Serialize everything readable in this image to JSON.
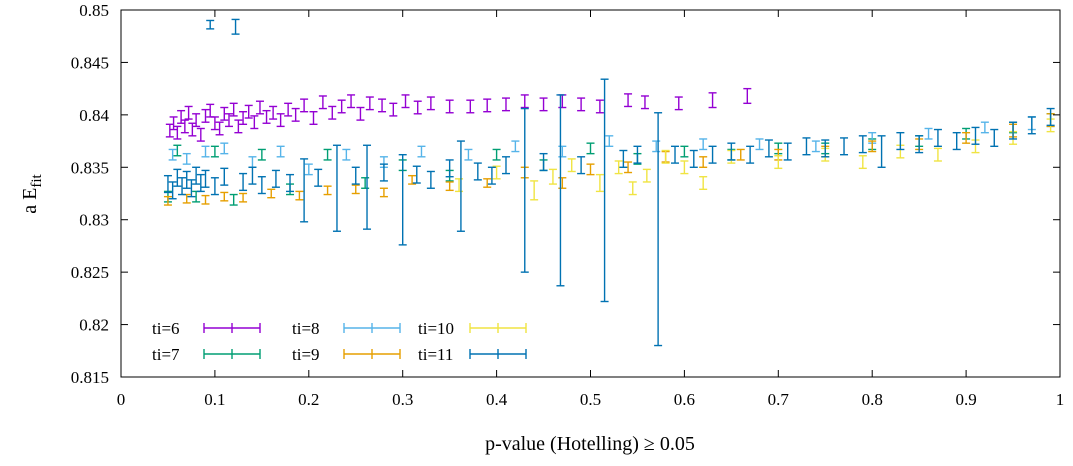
{
  "chart_data": {
    "type": "scatter",
    "title": "",
    "xlabel": "p-value (Hotelling) ≥ 0.05",
    "ylabel_main": "a E",
    "ylabel_sub": "fit",
    "xlim": [
      0,
      1
    ],
    "ylim": [
      0.815,
      0.85
    ],
    "xticks": [
      "0",
      "0.1",
      "0.2",
      "0.3",
      "0.4",
      "0.5",
      "0.6",
      "0.7",
      "0.8",
      "0.9",
      "1"
    ],
    "yticks": [
      "0.815",
      "0.82",
      "0.825",
      "0.83",
      "0.835",
      "0.84",
      "0.845",
      "0.85"
    ],
    "grid": false,
    "legend_position": "bottom-left",
    "error_bars": true,
    "series": [
      {
        "name": "ti=6",
        "color": "#9400d3",
        "points": [
          [
            0.052,
            0.8385,
            0.0006
          ],
          [
            0.056,
            0.8392,
            0.0006
          ],
          [
            0.06,
            0.8383,
            0.0006
          ],
          [
            0.064,
            0.8398,
            0.0006
          ],
          [
            0.068,
            0.8389,
            0.0006
          ],
          [
            0.072,
            0.8402,
            0.0006
          ],
          [
            0.076,
            0.8386,
            0.0006
          ],
          [
            0.08,
            0.8395,
            0.0006
          ],
          [
            0.085,
            0.8381,
            0.0006
          ],
          [
            0.09,
            0.8399,
            0.0006
          ],
          [
            0.095,
            0.8404,
            0.0006
          ],
          [
            0.1,
            0.8392,
            0.0006
          ],
          [
            0.105,
            0.8387,
            0.0006
          ],
          [
            0.11,
            0.8401,
            0.0006
          ],
          [
            0.115,
            0.8395,
            0.0006
          ],
          [
            0.12,
            0.8405,
            0.0006
          ],
          [
            0.125,
            0.8389,
            0.0006
          ],
          [
            0.13,
            0.8397,
            0.0006
          ],
          [
            0.136,
            0.8403,
            0.0006
          ],
          [
            0.142,
            0.8393,
            0.0006
          ],
          [
            0.148,
            0.8407,
            0.0006
          ],
          [
            0.155,
            0.8398,
            0.0006
          ],
          [
            0.162,
            0.8402,
            0.0006
          ],
          [
            0.17,
            0.8395,
            0.0006
          ],
          [
            0.178,
            0.8405,
            0.0006
          ],
          [
            0.186,
            0.84,
            0.0006
          ],
          [
            0.195,
            0.8409,
            0.0006
          ],
          [
            0.205,
            0.8397,
            0.0006
          ],
          [
            0.215,
            0.8412,
            0.0006
          ],
          [
            0.225,
            0.8402,
            0.0006
          ],
          [
            0.235,
            0.8408,
            0.0006
          ],
          [
            0.245,
            0.8413,
            0.0006
          ],
          [
            0.255,
            0.8401,
            0.0006
          ],
          [
            0.265,
            0.8411,
            0.0006
          ],
          [
            0.278,
            0.8409,
            0.0006
          ],
          [
            0.29,
            0.8405,
            0.0006
          ],
          [
            0.303,
            0.8413,
            0.0006
          ],
          [
            0.316,
            0.8407,
            0.0006
          ],
          [
            0.33,
            0.8411,
            0.0006
          ],
          [
            0.35,
            0.8408,
            0.0006
          ],
          [
            0.372,
            0.8408,
            0.0006
          ],
          [
            0.39,
            0.8409,
            0.0006
          ],
          [
            0.41,
            0.841,
            0.0006
          ],
          [
            0.43,
            0.8413,
            0.0006
          ],
          [
            0.45,
            0.841,
            0.0006
          ],
          [
            0.47,
            0.8413,
            0.0006
          ],
          [
            0.49,
            0.841,
            0.0006
          ],
          [
            0.51,
            0.8408,
            0.0006
          ],
          [
            0.54,
            0.8414,
            0.0006
          ],
          [
            0.558,
            0.8412,
            0.0006
          ],
          [
            0.594,
            0.8411,
            0.0006
          ],
          [
            0.63,
            0.8414,
            0.0007
          ],
          [
            0.667,
            0.8418,
            0.0007
          ]
        ]
      },
      {
        "name": "ti=7",
        "color": "#009e73",
        "points": [
          [
            0.05,
            0.8322,
            0.0005
          ],
          [
            0.06,
            0.8366,
            0.0005
          ],
          [
            0.08,
            0.8322,
            0.0005
          ],
          [
            0.1,
            0.8365,
            0.0005
          ],
          [
            0.12,
            0.8319,
            0.0005
          ],
          [
            0.15,
            0.8362,
            0.0005
          ],
          [
            0.18,
            0.8329,
            0.0005
          ],
          [
            0.22,
            0.8362,
            0.0005
          ],
          [
            0.26,
            0.8335,
            0.0005
          ],
          [
            0.3,
            0.8352,
            0.0005
          ],
          [
            0.35,
            0.8342,
            0.0005
          ],
          [
            0.4,
            0.8362,
            0.0005
          ],
          [
            0.45,
            0.8352,
            0.0005
          ],
          [
            0.5,
            0.8368,
            0.0005
          ],
          [
            0.55,
            0.8358,
            0.0005
          ],
          [
            0.6,
            0.8365,
            0.0005
          ],
          [
            0.65,
            0.8362,
            0.0005
          ],
          [
            0.7,
            0.8368,
            0.0005
          ],
          [
            0.75,
            0.8368,
            0.0005
          ],
          [
            0.8,
            0.8372,
            0.0005
          ],
          [
            0.85,
            0.8375,
            0.0005
          ],
          [
            0.9,
            0.8382,
            0.0005
          ],
          [
            0.95,
            0.8388,
            0.0005
          ],
          [
            0.99,
            0.8395,
            0.0006
          ]
        ]
      },
      {
        "name": "ti=8",
        "color": "#56b4e9",
        "points": [
          [
            0.055,
            0.8362,
            0.0005
          ],
          [
            0.07,
            0.8358,
            0.0005
          ],
          [
            0.09,
            0.8365,
            0.0005
          ],
          [
            0.11,
            0.8368,
            0.0005
          ],
          [
            0.14,
            0.8355,
            0.0005
          ],
          [
            0.17,
            0.8365,
            0.0005
          ],
          [
            0.2,
            0.8348,
            0.0005
          ],
          [
            0.24,
            0.8362,
            0.0005
          ],
          [
            0.28,
            0.8355,
            0.0005
          ],
          [
            0.32,
            0.8365,
            0.0005
          ],
          [
            0.37,
            0.8362,
            0.0005
          ],
          [
            0.42,
            0.837,
            0.0005
          ],
          [
            0.47,
            0.8365,
            0.0005
          ],
          [
            0.52,
            0.8375,
            0.0005
          ],
          [
            0.57,
            0.837,
            0.0005
          ],
          [
            0.62,
            0.8372,
            0.0005
          ],
          [
            0.68,
            0.8372,
            0.0005
          ],
          [
            0.74,
            0.837,
            0.0005
          ],
          [
            0.8,
            0.8378,
            0.0005
          ],
          [
            0.86,
            0.8382,
            0.0005
          ],
          [
            0.92,
            0.8388,
            0.0005
          ],
          [
            0.97,
            0.8392,
            0.0006
          ]
        ]
      },
      {
        "name": "ti=9",
        "color": "#e69f00",
        "points": [
          [
            0.05,
            0.8318,
            0.0004
          ],
          [
            0.07,
            0.832,
            0.0004
          ],
          [
            0.09,
            0.8319,
            0.0004
          ],
          [
            0.11,
            0.8322,
            0.0004
          ],
          [
            0.13,
            0.8321,
            0.0004
          ],
          [
            0.16,
            0.8325,
            0.0004
          ],
          [
            0.19,
            0.8323,
            0.0004
          ],
          [
            0.22,
            0.8328,
            0.0004
          ],
          [
            0.25,
            0.8329,
            0.0004
          ],
          [
            0.28,
            0.8326,
            0.0004
          ],
          [
            0.31,
            0.8338,
            0.0004
          ],
          [
            0.35,
            0.8332,
            0.0004
          ],
          [
            0.39,
            0.8335,
            0.0004
          ],
          [
            0.43,
            0.8345,
            0.0005
          ],
          [
            0.47,
            0.8335,
            0.0005
          ],
          [
            0.5,
            0.8348,
            0.0005
          ],
          [
            0.54,
            0.835,
            0.0005
          ],
          [
            0.58,
            0.836,
            0.0005
          ],
          [
            0.62,
            0.8355,
            0.0005
          ],
          [
            0.66,
            0.8362,
            0.0005
          ],
          [
            0.7,
            0.8362,
            0.0005
          ],
          [
            0.75,
            0.8365,
            0.0005
          ],
          [
            0.8,
            0.837,
            0.0005
          ],
          [
            0.85,
            0.8372,
            0.0005
          ],
          [
            0.9,
            0.8378,
            0.0005
          ],
          [
            0.95,
            0.8385,
            0.0006
          ],
          [
            0.99,
            0.8395,
            0.0006
          ]
        ]
      },
      {
        "name": "ti=10",
        "color": "#f0e442",
        "points": [
          [
            0.36,
            0.8333,
            0.0006
          ],
          [
            0.4,
            0.8345,
            0.0006
          ],
          [
            0.44,
            0.8328,
            0.0009
          ],
          [
            0.46,
            0.8341,
            0.0007
          ],
          [
            0.48,
            0.8352,
            0.0006
          ],
          [
            0.51,
            0.8335,
            0.0008
          ],
          [
            0.53,
            0.835,
            0.0006
          ],
          [
            0.545,
            0.833,
            0.0006
          ],
          [
            0.56,
            0.8342,
            0.0006
          ],
          [
            0.58,
            0.836,
            0.0006
          ],
          [
            0.6,
            0.835,
            0.0006
          ],
          [
            0.62,
            0.8335,
            0.0006
          ],
          [
            0.65,
            0.836,
            0.0006
          ],
          [
            0.7,
            0.8355,
            0.0006
          ],
          [
            0.75,
            0.8362,
            0.0006
          ],
          [
            0.79,
            0.8355,
            0.0006
          ],
          [
            0.83,
            0.8365,
            0.0006
          ],
          [
            0.87,
            0.8362,
            0.0006
          ],
          [
            0.91,
            0.837,
            0.0006
          ],
          [
            0.95,
            0.8378,
            0.0006
          ],
          [
            0.99,
            0.839,
            0.0006
          ]
        ]
      },
      {
        "name": "ti=11",
        "color": "#0072b2",
        "points": [
          [
            0.05,
            0.8334,
            0.0008
          ],
          [
            0.055,
            0.8328,
            0.0008
          ],
          [
            0.06,
            0.834,
            0.0008
          ],
          [
            0.065,
            0.8332,
            0.0008
          ],
          [
            0.07,
            0.8338,
            0.0008
          ],
          [
            0.075,
            0.833,
            0.0008
          ],
          [
            0.08,
            0.8342,
            0.0008
          ],
          [
            0.085,
            0.8335,
            0.0008
          ],
          [
            0.09,
            0.8339,
            0.0008
          ],
          [
            0.095,
            0.8486,
            0.0004
          ],
          [
            0.1,
            0.8332,
            0.0008
          ],
          [
            0.11,
            0.8341,
            0.0008
          ],
          [
            0.122,
            0.8484,
            0.0007
          ],
          [
            0.13,
            0.8336,
            0.0008
          ],
          [
            0.14,
            0.8342,
            0.0008
          ],
          [
            0.15,
            0.8333,
            0.0008
          ],
          [
            0.165,
            0.8339,
            0.0008
          ],
          [
            0.18,
            0.8335,
            0.0008
          ],
          [
            0.195,
            0.8328,
            0.003
          ],
          [
            0.21,
            0.834,
            0.0008
          ],
          [
            0.23,
            0.833,
            0.0041
          ],
          [
            0.25,
            0.8342,
            0.0008
          ],
          [
            0.262,
            0.8331,
            0.004
          ],
          [
            0.28,
            0.8345,
            0.0008
          ],
          [
            0.3,
            0.8319,
            0.0043
          ],
          [
            0.315,
            0.8343,
            0.0008
          ],
          [
            0.33,
            0.8338,
            0.0008
          ],
          [
            0.35,
            0.8349,
            0.0008
          ],
          [
            0.362,
            0.8332,
            0.0043
          ],
          [
            0.38,
            0.8346,
            0.0008
          ],
          [
            0.395,
            0.8342,
            0.0008
          ],
          [
            0.41,
            0.8352,
            0.0008
          ],
          [
            0.43,
            0.8328,
            0.0078
          ],
          [
            0.45,
            0.8355,
            0.0008
          ],
          [
            0.468,
            0.8328,
            0.0091
          ],
          [
            0.49,
            0.8352,
            0.0008
          ],
          [
            0.515,
            0.8328,
            0.0106
          ],
          [
            0.535,
            0.8358,
            0.0008
          ],
          [
            0.55,
            0.8362,
            0.0008
          ],
          [
            0.572,
            0.8291,
            0.0111
          ],
          [
            0.59,
            0.8362,
            0.0008
          ],
          [
            0.61,
            0.8358,
            0.0008
          ],
          [
            0.63,
            0.8362,
            0.0008
          ],
          [
            0.65,
            0.8365,
            0.0008
          ],
          [
            0.67,
            0.8362,
            0.0008
          ],
          [
            0.69,
            0.8368,
            0.0008
          ],
          [
            0.71,
            0.8365,
            0.0008
          ],
          [
            0.73,
            0.837,
            0.0008
          ],
          [
            0.75,
            0.8368,
            0.0008
          ],
          [
            0.77,
            0.837,
            0.0008
          ],
          [
            0.79,
            0.8372,
            0.0008
          ],
          [
            0.81,
            0.8365,
            0.0015
          ],
          [
            0.83,
            0.8375,
            0.0008
          ],
          [
            0.85,
            0.8372,
            0.0008
          ],
          [
            0.87,
            0.8378,
            0.0008
          ],
          [
            0.89,
            0.8375,
            0.0008
          ],
          [
            0.91,
            0.838,
            0.0008
          ],
          [
            0.93,
            0.8378,
            0.0008
          ],
          [
            0.95,
            0.8385,
            0.0008
          ],
          [
            0.97,
            0.839,
            0.0008
          ],
          [
            0.99,
            0.8398,
            0.0008
          ]
        ]
      }
    ]
  }
}
